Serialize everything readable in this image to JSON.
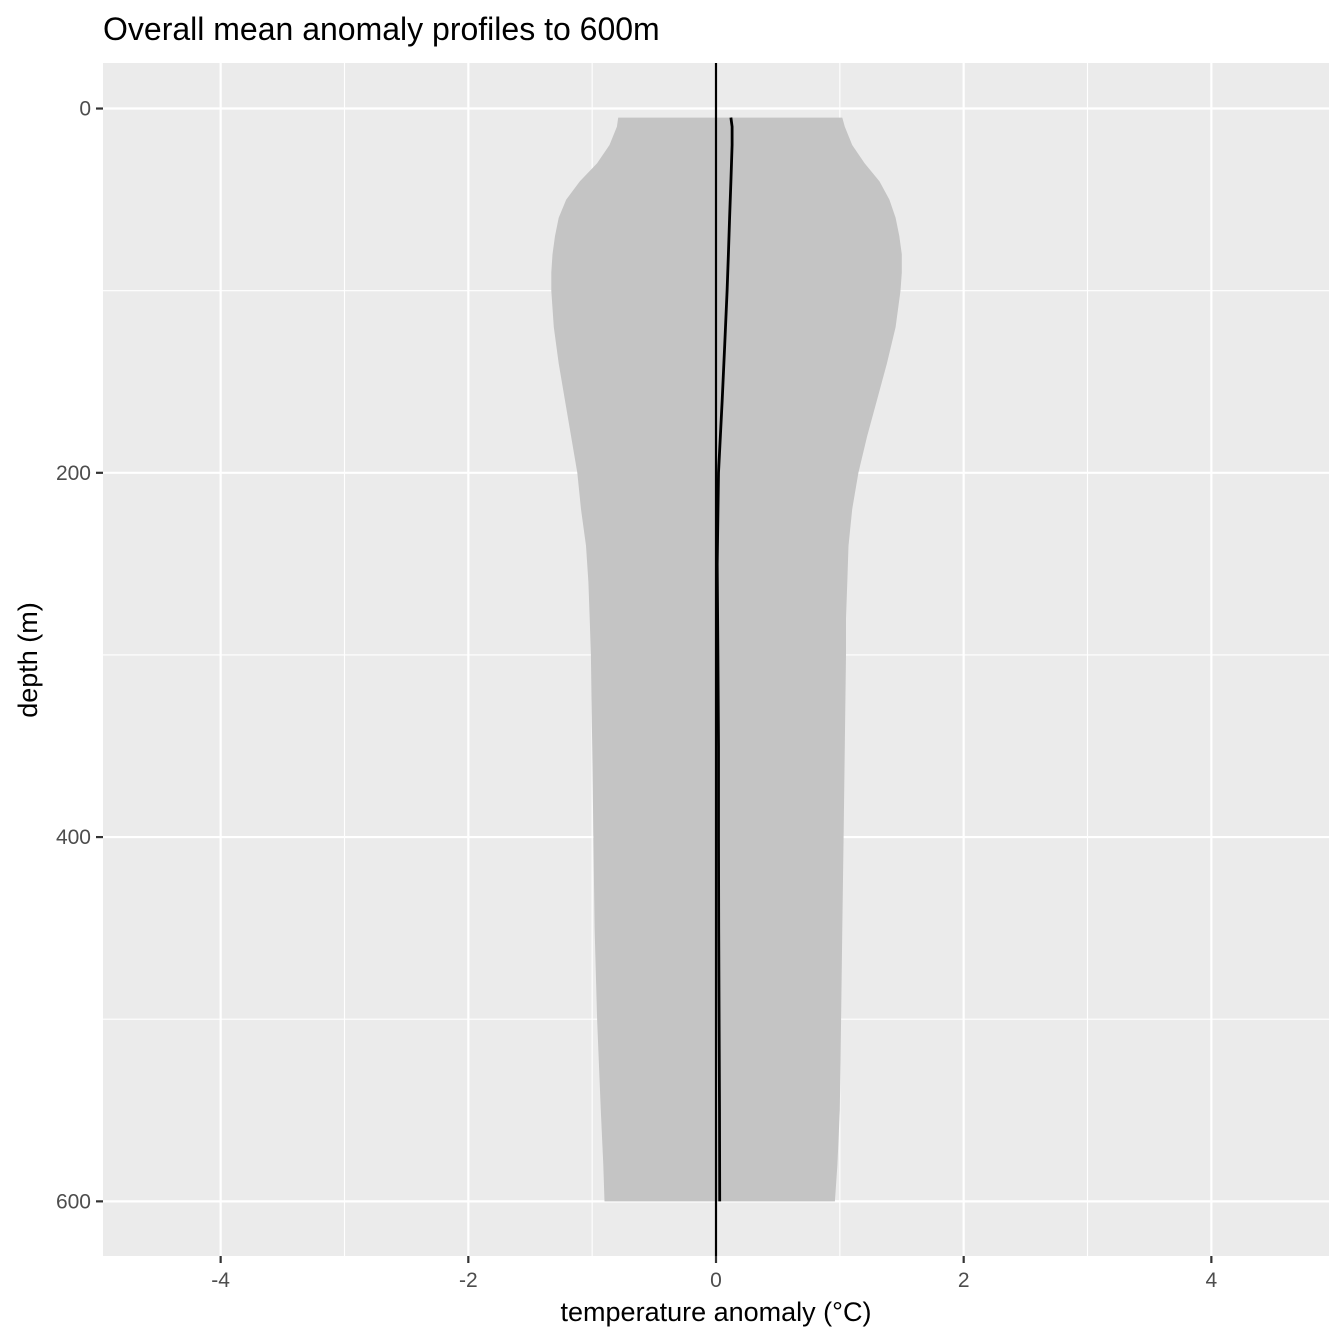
{
  "chart_data": {
    "type": "area",
    "title": "Overall mean anomaly profiles to 600m",
    "xlabel": "temperature anomaly (°C)",
    "ylabel": "depth (m)",
    "xlim": [
      -4.95,
      4.95
    ],
    "ylim": [
      -25,
      630
    ],
    "y_reversed": true,
    "x_ticks": [
      -4,
      -2,
      0,
      2,
      4
    ],
    "y_ticks": [
      0,
      200,
      400,
      600
    ],
    "grid": true,
    "legend": "none",
    "reference_line_x": 0,
    "colors": {
      "panel": "#ebebeb",
      "grid": "#ffffff",
      "band": "#c4c4c4",
      "line": "#000000"
    },
    "envelope": {
      "depth": [
        5,
        10,
        20,
        30,
        40,
        50,
        60,
        70,
        80,
        90,
        100,
        120,
        140,
        160,
        180,
        200,
        220,
        240,
        260,
        280,
        300,
        350,
        400,
        450,
        500,
        550,
        580,
        600
      ],
      "lower": [
        -0.79,
        -0.8,
        -0.86,
        -0.96,
        -1.1,
        -1.21,
        -1.27,
        -1.3,
        -1.32,
        -1.33,
        -1.33,
        -1.31,
        -1.27,
        -1.22,
        -1.17,
        -1.12,
        -1.09,
        -1.05,
        -1.03,
        -1.02,
        -1.01,
        -1.0,
        -0.99,
        -0.98,
        -0.96,
        -0.93,
        -0.91,
        -0.9
      ],
      "upper": [
        1.02,
        1.04,
        1.1,
        1.2,
        1.32,
        1.4,
        1.45,
        1.48,
        1.5,
        1.5,
        1.49,
        1.45,
        1.38,
        1.3,
        1.22,
        1.15,
        1.1,
        1.07,
        1.06,
        1.05,
        1.05,
        1.04,
        1.03,
        1.02,
        1.01,
        1.0,
        0.98,
        0.96
      ]
    },
    "mean_profile": {
      "depth": [
        5,
        10,
        20,
        40,
        60,
        80,
        100,
        130,
        160,
        200,
        250,
        300,
        350,
        400,
        450,
        500,
        550,
        600
      ],
      "anomaly": [
        0.12,
        0.13,
        0.13,
        0.12,
        0.11,
        0.1,
        0.09,
        0.07,
        0.05,
        0.02,
        0.01,
        0.015,
        0.02,
        0.02,
        0.022,
        0.025,
        0.028,
        0.03
      ]
    }
  }
}
